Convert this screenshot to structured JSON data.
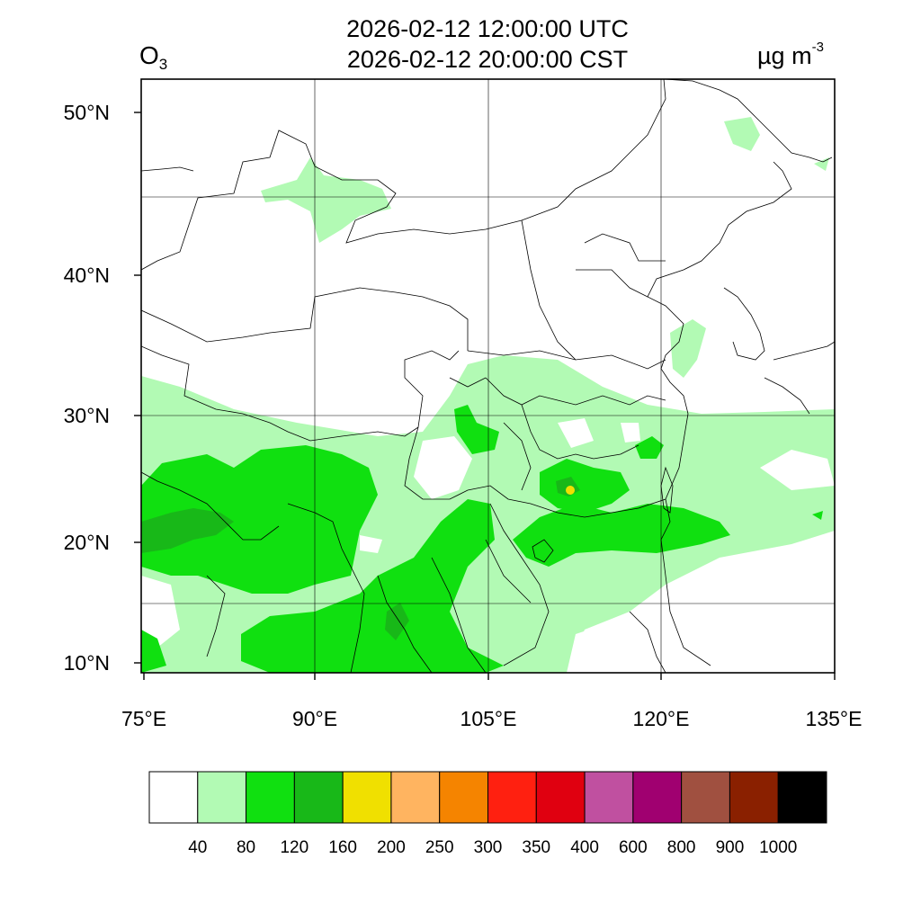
{
  "header": {
    "title_utc": "2026-02-12 12:00:00 UTC",
    "title_cst": "2026-02-12 20:00:00 CST",
    "variable": "O",
    "variable_sub": "3",
    "unit_main": "µg m",
    "unit_sup": "-3"
  },
  "axes": {
    "lat_labels": [
      "50°N",
      "40°N",
      "30°N",
      "20°N",
      "10°N"
    ],
    "lon_labels": [
      "75°E",
      "90°E",
      "105°E",
      "120°E",
      "135°E"
    ],
    "lon_range": [
      75,
      135
    ],
    "lat_range": [
      9,
      52
    ],
    "grid": true
  },
  "colorbar": {
    "colors": [
      "#ffffff",
      "#b2fab4",
      "#10e010",
      "#18b818",
      "#f0e000",
      "#ffb460",
      "#f58400",
      "#ff2010",
      "#e00010",
      "#c050a0",
      "#a00070",
      "#a05040",
      "#8a2000",
      "#000000"
    ],
    "labels": [
      "40",
      "80",
      "120",
      "160",
      "200",
      "250",
      "300",
      "350",
      "400",
      "600",
      "800",
      "900",
      "1000"
    ]
  }
}
